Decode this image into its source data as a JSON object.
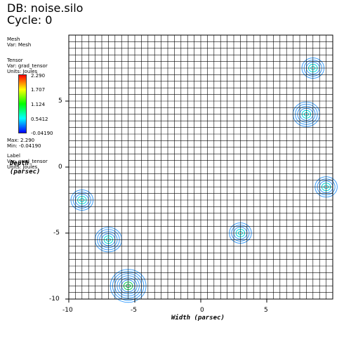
{
  "header": {
    "db": "DB: noise.silo",
    "cycle": "Cycle: 0"
  },
  "legend_mesh": {
    "title": "Mesh",
    "var": "Var: Mesh"
  },
  "legend_tensor": {
    "title": "Tensor",
    "var": "Var: grad_tensor",
    "units": "Units: Joules",
    "ticks": [
      "2.290",
      "1.707",
      "1.124",
      "0.5412",
      "-0.04190"
    ],
    "max": "Max:  2.290",
    "min": "Min: -0.04190"
  },
  "legend_label": {
    "title": "Label",
    "var": "Var: grad_tensor",
    "units": "Units: Joules"
  },
  "axes": {
    "x_title": "Width (parsec)",
    "y_title_1": "Depth",
    "y_title_2": "(parsec)",
    "x_ticks": [
      "-10",
      "-5",
      "0",
      "5"
    ],
    "y_ticks": [
      "5",
      "0",
      "-5",
      "-10"
    ]
  },
  "chart_data": {
    "type": "heatmap",
    "xlabel": "Width (parsec)",
    "ylabel": "Depth (parsec)",
    "xlim": [
      -10,
      10
    ],
    "ylim": [
      -10,
      10
    ],
    "grid": true,
    "colormap_range": [
      -0.0419,
      2.29
    ],
    "hotspots": [
      {
        "x": -7,
        "y": -5.5,
        "level": 0.6
      },
      {
        "x": -5.5,
        "y": -9,
        "level": 1.0
      },
      {
        "x": 8,
        "y": 4,
        "level": 0.5
      },
      {
        "x": -9,
        "y": -2.5,
        "level": 0.35
      },
      {
        "x": 9.5,
        "y": -1.5,
        "level": 0.35
      },
      {
        "x": 3,
        "y": -5,
        "level": 0.3
      },
      {
        "x": 8.5,
        "y": 7.5,
        "level": 0.3
      }
    ]
  },
  "colors": {
    "grid": "#000000",
    "contour_low": "#3da0ff",
    "contour_mid": "#00e0e0",
    "contour_high": "#00d050"
  }
}
